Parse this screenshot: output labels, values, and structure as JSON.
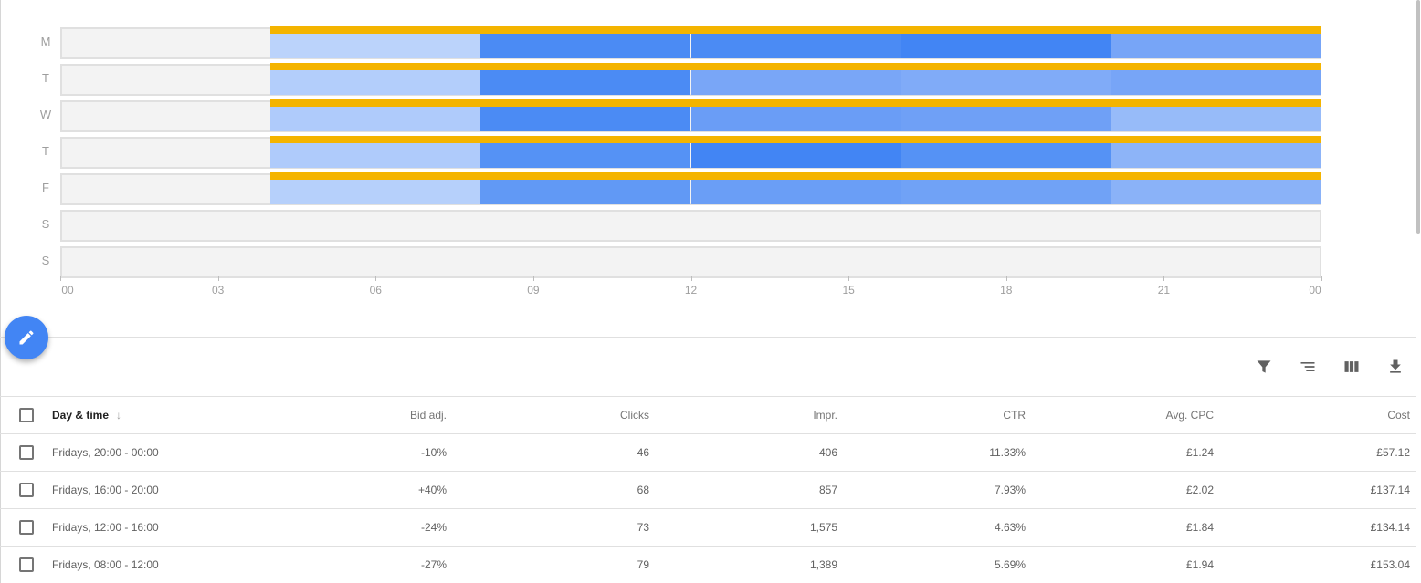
{
  "chart_data": {
    "type": "heatmap",
    "days": [
      "M",
      "T",
      "W",
      "T",
      "F",
      "S",
      "S"
    ],
    "x_ticks": [
      "00",
      "03",
      "06",
      "09",
      "12",
      "15",
      "18",
      "21",
      "00"
    ],
    "x_range_hours": [
      0,
      24
    ],
    "block_hours": [
      [
        4,
        8
      ],
      [
        8,
        12
      ],
      [
        12,
        16
      ],
      [
        16,
        20
      ],
      [
        20,
        24
      ]
    ],
    "scheduled": [
      true,
      true,
      true,
      true,
      true,
      false,
      false
    ],
    "cell_colors": [
      [
        "#bbd3fb",
        "#4b8bf4",
        "#4b8bf4",
        "#4285f4",
        "#77a5f7"
      ],
      [
        "#b3cefb",
        "#4b8bf4",
        "#79a6f7",
        "#80abf8",
        "#77a5f7"
      ],
      [
        "#afcbfb",
        "#4b8bf4",
        "#6a9df6",
        "#6fa0f6",
        "#97bbf9"
      ],
      [
        "#afcbfb",
        "#5592f5",
        "#4285f4",
        "#5592f5",
        "#8db4f8"
      ],
      [
        "#b6d0fb",
        "#6199f5",
        "#6a9ef6",
        "#70a2f6",
        "#8ab2f8"
      ],
      [],
      []
    ],
    "schedule_color": "#f4b400"
  },
  "fab": {
    "icon": "pencil-icon"
  },
  "toolbar": {
    "icons": [
      "filter-icon",
      "segment-icon",
      "columns-icon",
      "download-icon"
    ]
  },
  "table": {
    "headers": [
      "Day & time",
      "Bid adj.",
      "Clicks",
      "Impr.",
      "CTR",
      "Avg. CPC",
      "Cost"
    ],
    "sort_icon": "↓",
    "rows": [
      [
        "Fridays, 20:00 - 00:00",
        "-10%",
        "46",
        "406",
        "11.33%",
        "£1.24",
        "£57.12"
      ],
      [
        "Fridays, 16:00 - 20:00",
        "+40%",
        "68",
        "857",
        "7.93%",
        "£2.02",
        "£137.14"
      ],
      [
        "Fridays, 12:00 - 16:00",
        "-24%",
        "73",
        "1,575",
        "4.63%",
        "£1.84",
        "£134.14"
      ],
      [
        "Fridays, 08:00 - 12:00",
        "-27%",
        "79",
        "1,389",
        "5.69%",
        "£1.94",
        "£153.04"
      ]
    ]
  }
}
